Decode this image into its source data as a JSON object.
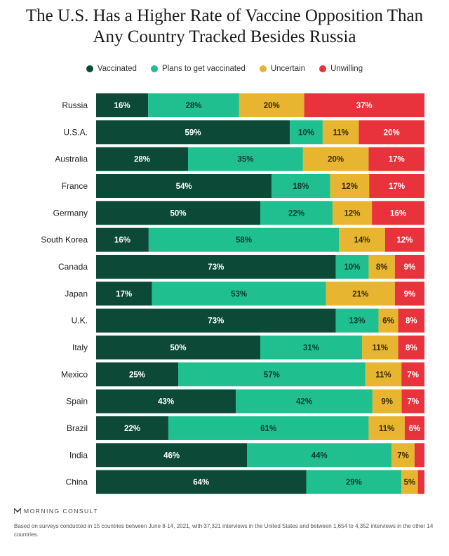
{
  "title_line1": "The U.S. Has a Higher Rate of Vaccine Opposition Than",
  "title_line2": "Any Country Tracked Besides Russia",
  "brand": "MORNING CONSULT",
  "note": "Based on surveys conducted in 15 countries between June 8-14, 2021, with 37,321 interviews in the United States and between 1,654 to 4,352 interviews in the other 14 countries.",
  "chart_data": {
    "type": "bar",
    "orientation": "horizontal",
    "stacked": true,
    "unit": "%",
    "legend_position": "top",
    "categories": [
      "Russia",
      "U.S.A.",
      "Australia",
      "France",
      "Germany",
      "South Korea",
      "Canada",
      "Japan",
      "U.K.",
      "Italy",
      "Mexico",
      "Spain",
      "Brazil",
      "India",
      "China"
    ],
    "series": [
      {
        "name": "Vaccinated",
        "color": "#0c4a37",
        "text_color": "#ffffff",
        "values": [
          16,
          59,
          28,
          54,
          50,
          16,
          73,
          17,
          73,
          50,
          25,
          43,
          22,
          46,
          64
        ]
      },
      {
        "name": "Plans to get vaccinated",
        "color": "#1fbf8f",
        "text_color": "#0c3a2c",
        "values": [
          28,
          10,
          35,
          18,
          22,
          58,
          10,
          53,
          13,
          31,
          57,
          42,
          61,
          44,
          29
        ]
      },
      {
        "name": "Uncertain",
        "color": "#e8b530",
        "text_color": "#3a2a00",
        "values": [
          20,
          11,
          20,
          12,
          12,
          14,
          8,
          21,
          6,
          11,
          11,
          9,
          11,
          7,
          5
        ]
      },
      {
        "name": "Unwilling",
        "color": "#e8323c",
        "text_color": "#ffffff",
        "values": [
          37,
          20,
          17,
          17,
          16,
          12,
          9,
          9,
          8,
          8,
          7,
          7,
          6,
          3,
          2
        ],
        "label_shown": [
          true,
          true,
          true,
          true,
          true,
          true,
          true,
          true,
          true,
          true,
          true,
          true,
          true,
          false,
          false
        ]
      }
    ]
  }
}
